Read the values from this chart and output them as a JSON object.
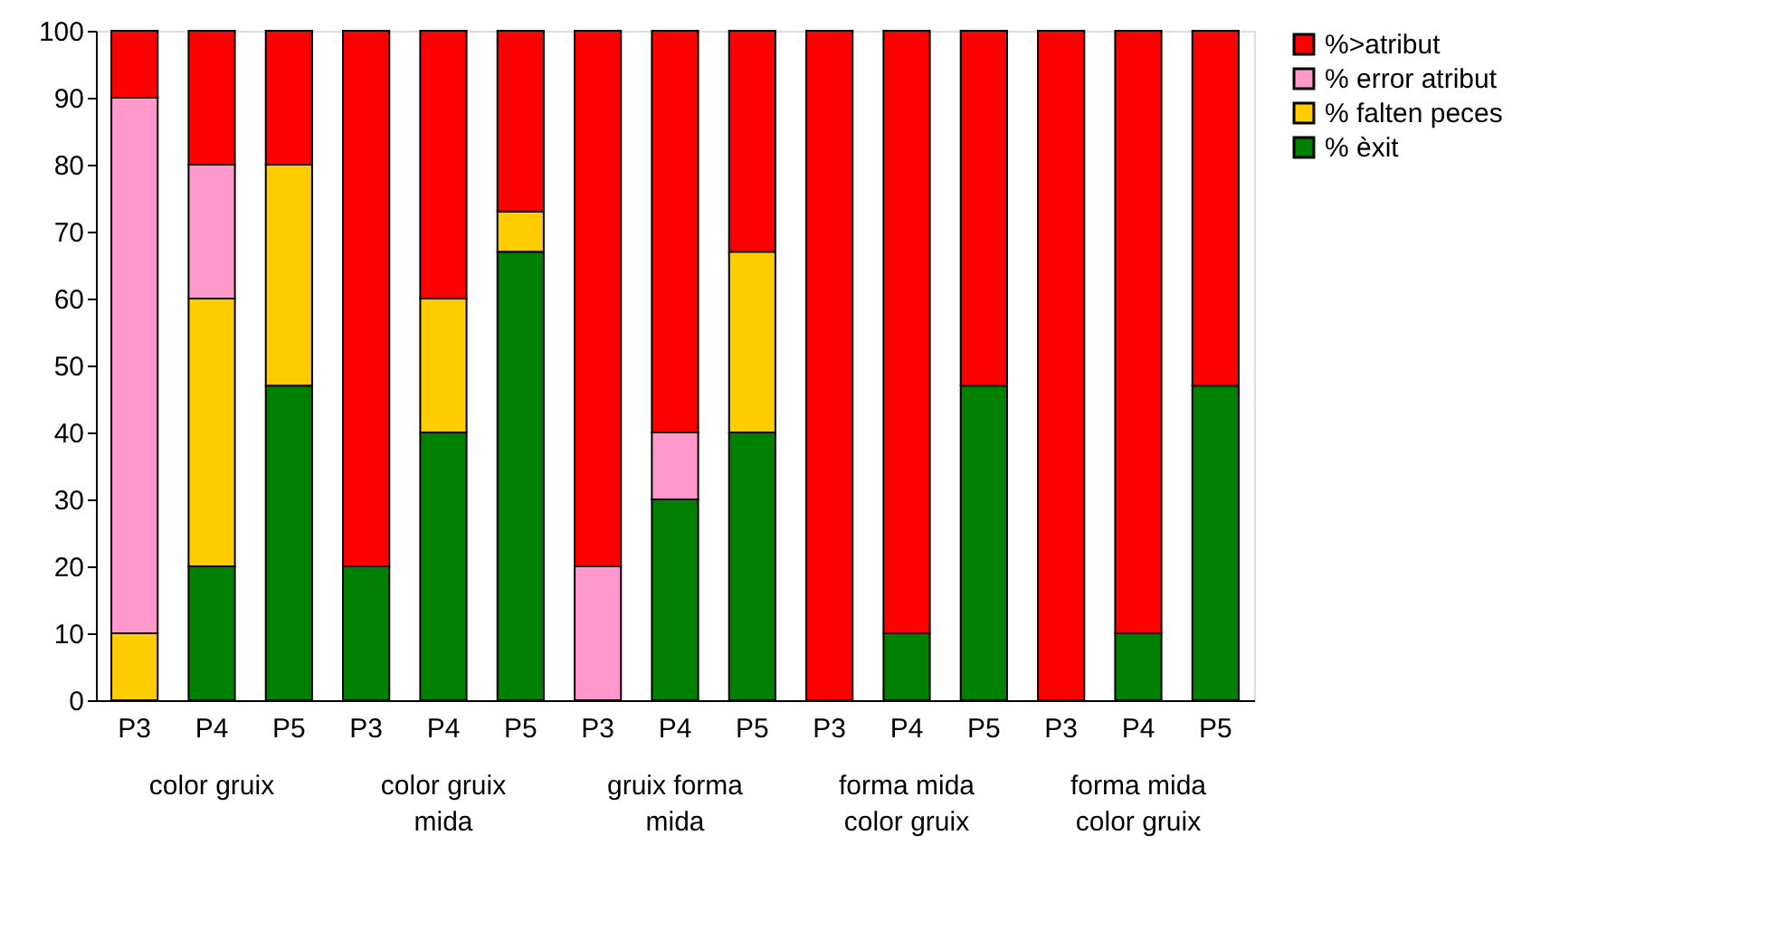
{
  "chart_data": {
    "type": "bar",
    "stacked": true,
    "categories": [
      "P3",
      "P4",
      "P5",
      "P3",
      "P4",
      "P5",
      "P3",
      "P4",
      "P5",
      "P3",
      "P4",
      "P5",
      "P3",
      "P4",
      "P5"
    ],
    "annotations": [
      "color gruix",
      "color gruix mida",
      "gruix forma mida",
      "forma mida color gruix",
      "forma mida color gruix"
    ],
    "series": [
      {
        "name": "% èxit",
        "color": "#008000",
        "values": [
          0,
          20,
          47,
          20,
          40,
          67,
          0,
          30,
          40,
          0,
          10,
          47,
          0,
          10,
          47
        ]
      },
      {
        "name": "% falten peces",
        "color": "#ffcc00",
        "values": [
          10,
          40,
          33,
          0,
          20,
          6,
          0,
          0,
          27,
          0,
          0,
          0,
          0,
          0,
          0
        ]
      },
      {
        "name": "% error atribut",
        "color": "#ff99cc",
        "values": [
          80,
          20,
          0,
          0,
          0,
          0,
          20,
          10,
          0,
          0,
          0,
          0,
          0,
          0,
          0
        ]
      },
      {
        "name": "%>atribut",
        "color": "#ff0000",
        "values": [
          10,
          20,
          20,
          80,
          40,
          27,
          80,
          60,
          33,
          100,
          90,
          53,
          100,
          90,
          53
        ]
      }
    ],
    "ylim": [
      0,
      100
    ],
    "yticks": [
      0,
      10,
      20,
      30,
      40,
      50,
      60,
      70,
      80,
      90,
      100
    ],
    "grid": false,
    "legend": "right"
  }
}
